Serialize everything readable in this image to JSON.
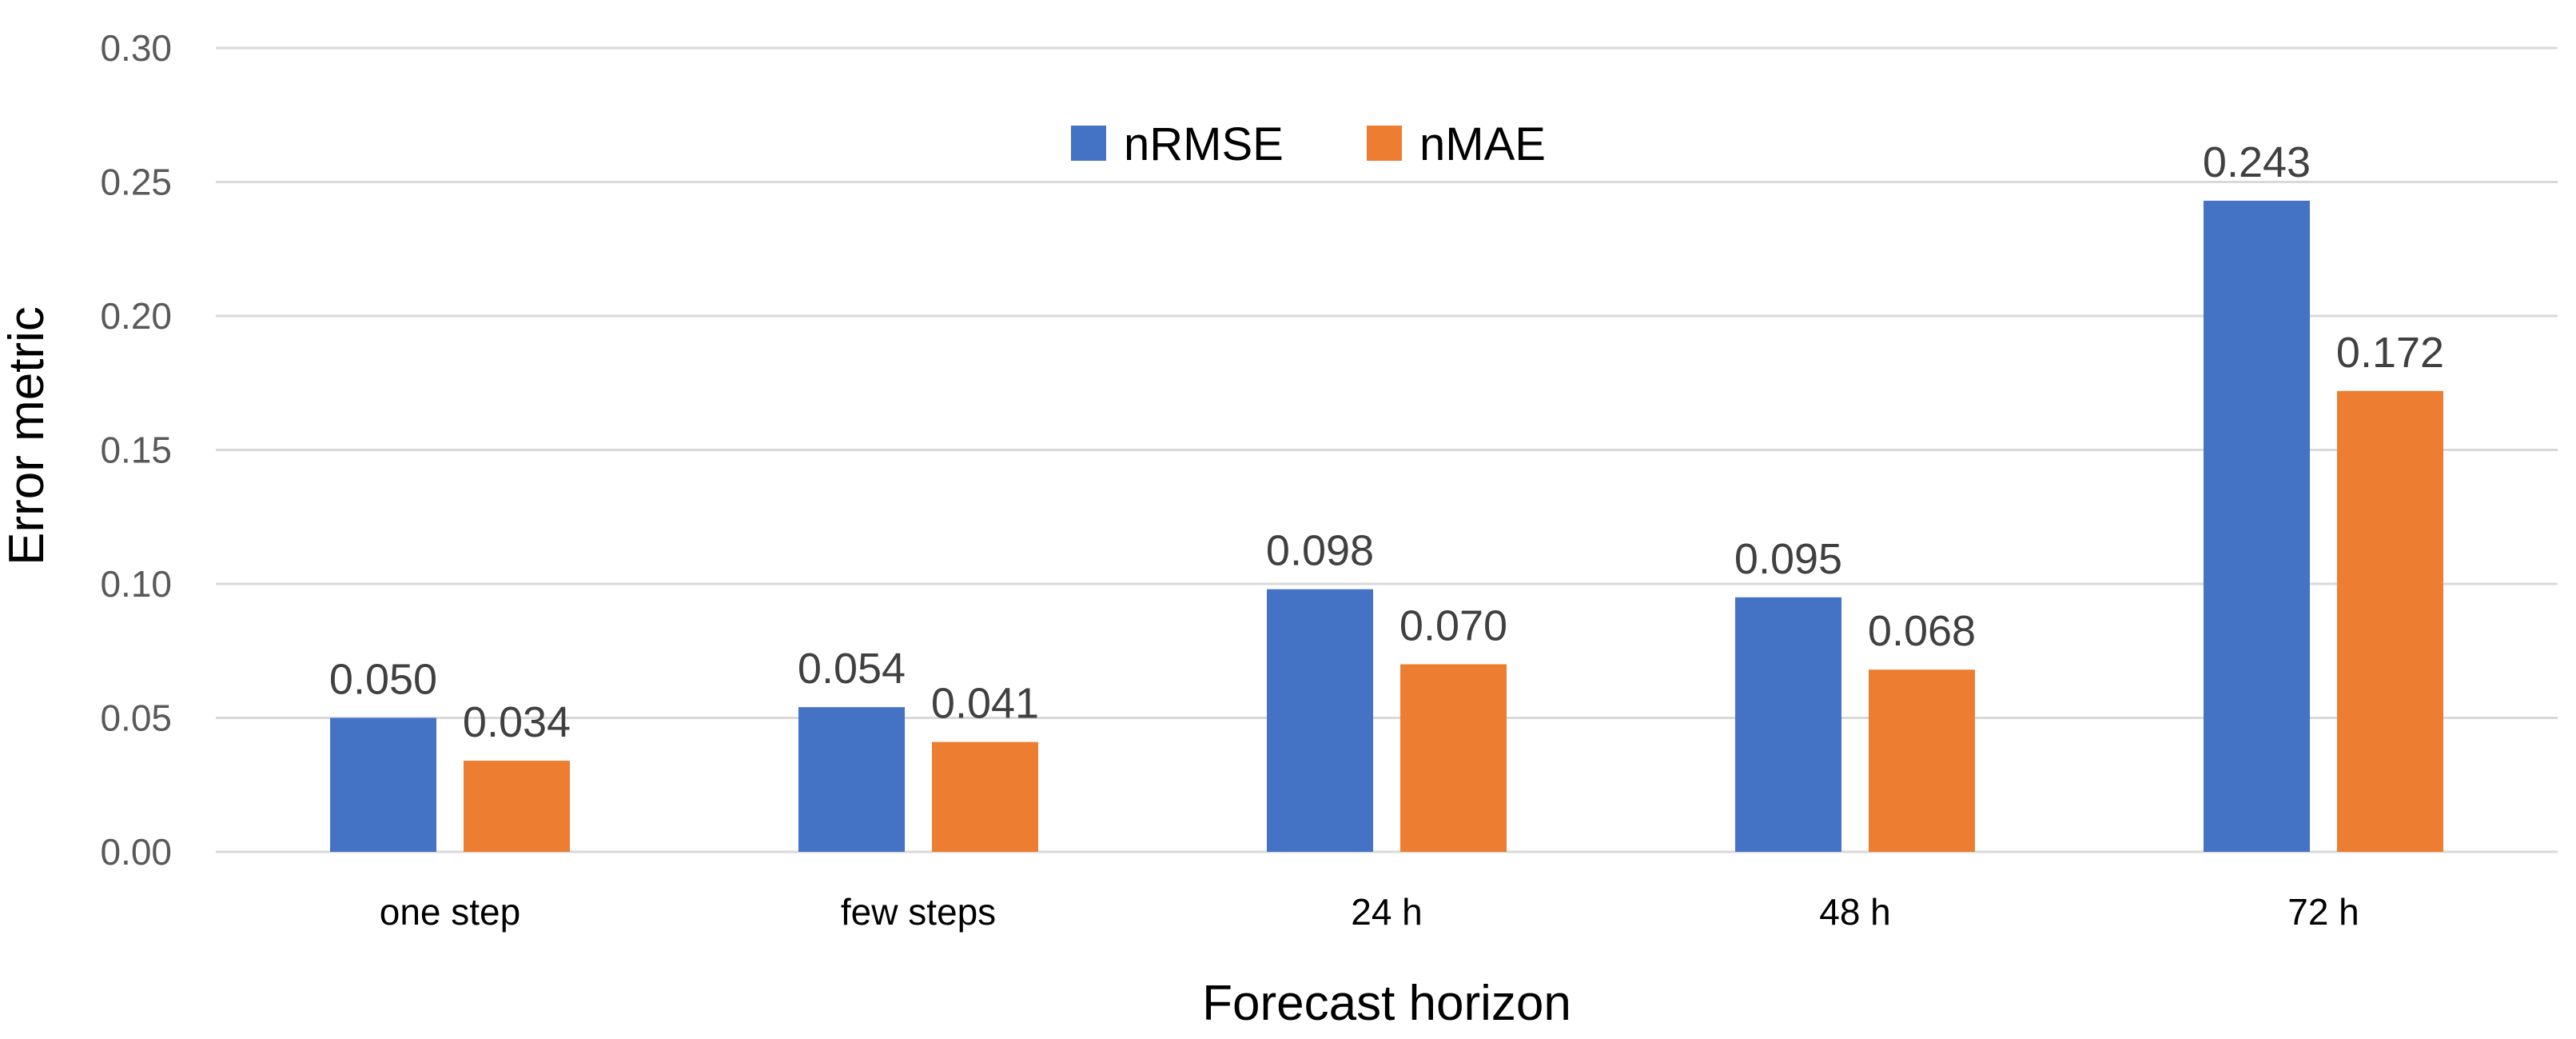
{
  "chart_data": {
    "type": "bar",
    "title": "",
    "xlabel": "Forecast horizon",
    "ylabel": "Error metric",
    "ylim": [
      0,
      0.3
    ],
    "yticks": [
      "0.00",
      "0.05",
      "0.10",
      "0.15",
      "0.20",
      "0.25",
      "0.30"
    ],
    "grid": true,
    "legend_position": "top-center",
    "categories": [
      "one step",
      "few steps",
      "24 h",
      "48 h",
      "72 h"
    ],
    "series": [
      {
        "name": "nRMSE",
        "color": "#4472C4",
        "values": [
          0.05,
          0.054,
          0.098,
          0.095,
          0.243
        ],
        "labels": [
          "0.050",
          "0.054",
          "0.098",
          "0.095",
          "0.243"
        ]
      },
      {
        "name": "nMAE",
        "color": "#ED7D31",
        "values": [
          0.034,
          0.041,
          0.07,
          0.068,
          0.172
        ],
        "labels": [
          "0.034",
          "0.041",
          "0.070",
          "0.068",
          "0.172"
        ]
      }
    ]
  }
}
